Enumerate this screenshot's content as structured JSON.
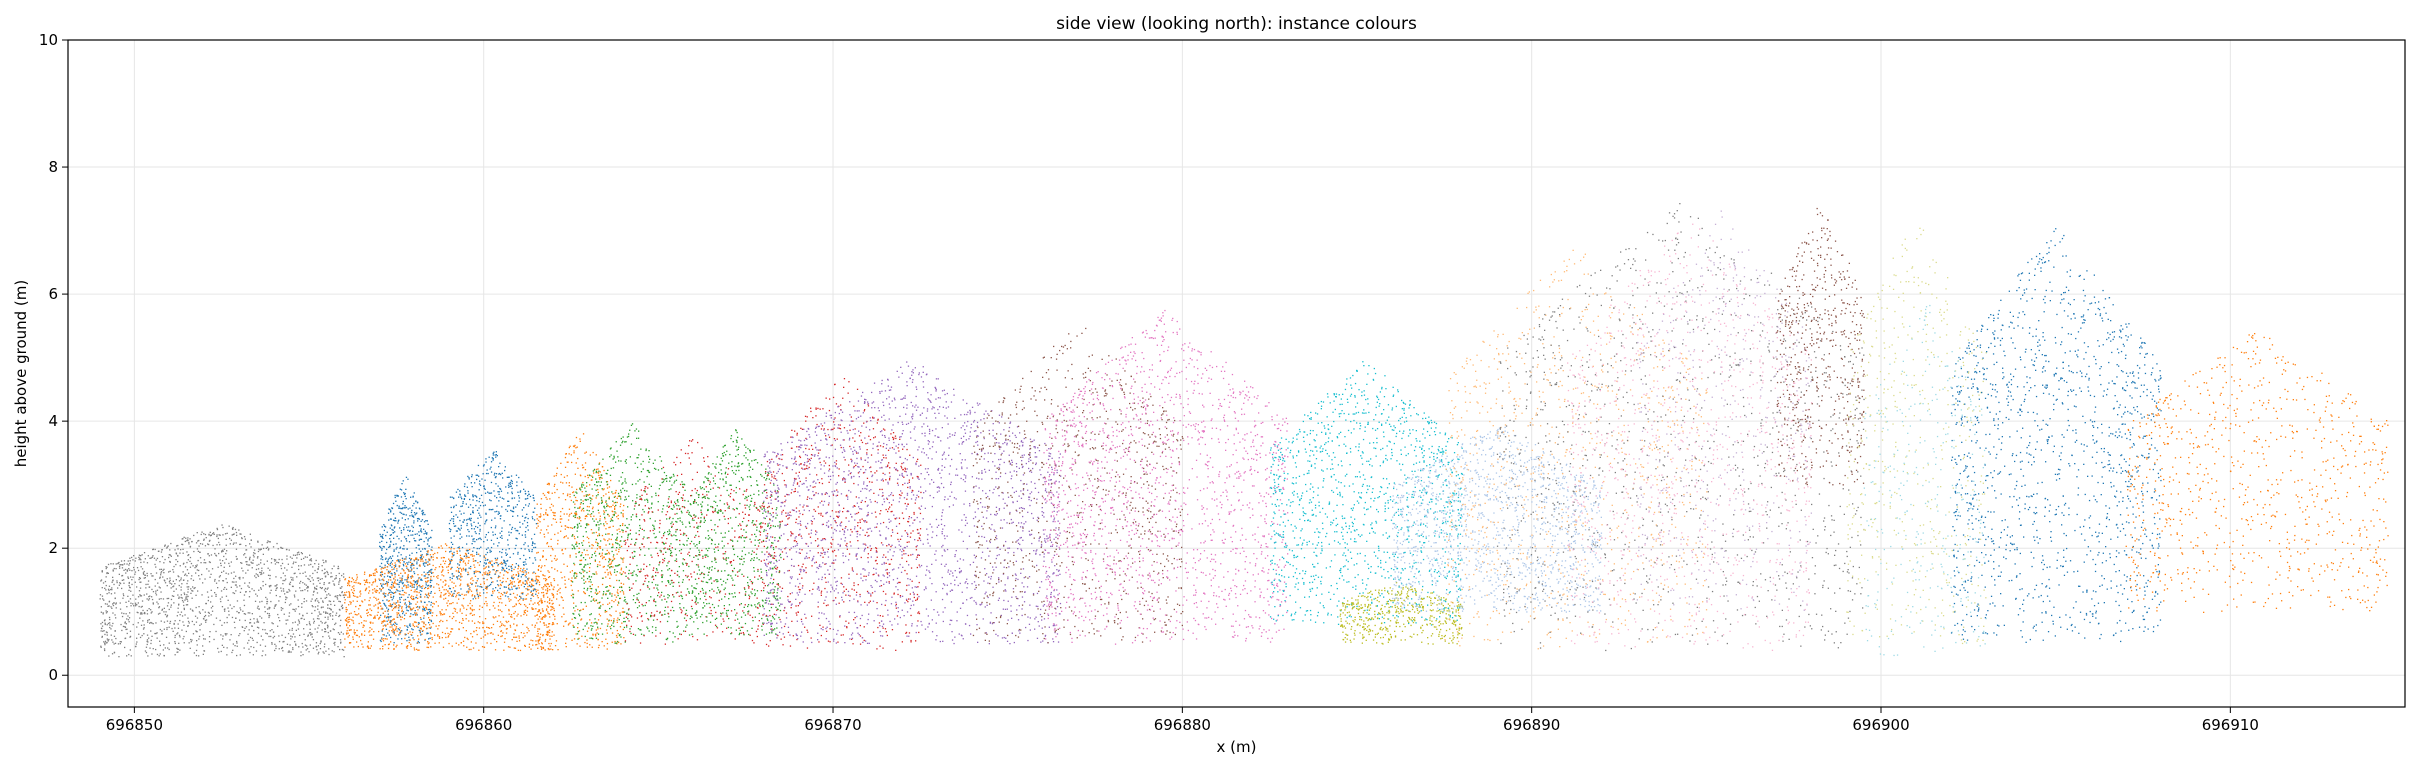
{
  "chart_data": {
    "type": "scatter",
    "title": "side view (looking north): instance colours",
    "xlabel": "x (m)",
    "ylabel": "height above ground (m)",
    "xlim": [
      696848.1,
      696915.0
    ],
    "ylim": [
      -0.5,
      10
    ],
    "xticks": [
      696850,
      696860,
      696870,
      696880,
      696890,
      696900,
      696910
    ],
    "xtick_labels": [
      "696850",
      "696860",
      "696870",
      "696880",
      "696890",
      "696900",
      "696910"
    ],
    "yticks": [
      0,
      2,
      4,
      6,
      8,
      10
    ],
    "ytick_labels": [
      "0",
      "2",
      "4",
      "6",
      "8",
      "10"
    ],
    "grid": true,
    "legend": "none",
    "point_size": "tiny",
    "instances": [
      {
        "color": "#7f7f7f",
        "x_range": [
          696849.0,
          696856.0
        ],
        "z_range": [
          0.3,
          2.4
        ],
        "density": 1.0
      },
      {
        "color": "#1f77b4",
        "x_range": [
          696857.0,
          696858.5
        ],
        "z_range": [
          0.5,
          3.2
        ],
        "density": 0.9
      },
      {
        "color": "#ff7f0e",
        "x_range": [
          696856.0,
          696862.0
        ],
        "z_range": [
          0.4,
          2.1
        ],
        "density": 1.0
      },
      {
        "color": "#1f77b4",
        "x_range": [
          696859.0,
          696861.5
        ],
        "z_range": [
          1.2,
          3.6
        ],
        "density": 0.9
      },
      {
        "color": "#ff7f0e",
        "x_range": [
          696861.5,
          696864.0
        ],
        "z_range": [
          0.4,
          3.9
        ],
        "density": 1.0
      },
      {
        "color": "#2ca02c",
        "x_range": [
          696862.5,
          696866.0
        ],
        "z_range": [
          0.5,
          4.0
        ],
        "density": 1.0
      },
      {
        "color": "#d62728",
        "x_range": [
          696864.0,
          696868.0
        ],
        "z_range": [
          0.5,
          3.8
        ],
        "density": 0.5
      },
      {
        "color": "#2ca02c",
        "x_range": [
          696866.0,
          696868.5
        ],
        "z_range": [
          0.6,
          4.0
        ],
        "density": 0.9
      },
      {
        "color": "#d62728",
        "x_range": [
          696868.0,
          696872.5
        ],
        "z_range": [
          0.4,
          4.8
        ],
        "density": 0.7
      },
      {
        "color": "#9467bd",
        "x_range": [
          696868.0,
          696876.5
        ],
        "z_range": [
          0.5,
          5.0
        ],
        "density": 1.0
      },
      {
        "color": "#8c564b",
        "x_range": [
          696874.0,
          696880.0
        ],
        "z_range": [
          0.5,
          5.6
        ],
        "density": 0.6
      },
      {
        "color": "#e377c2",
        "x_range": [
          696876.0,
          696883.0
        ],
        "z_range": [
          0.5,
          5.8
        ],
        "density": 1.0
      },
      {
        "color": "#17becf",
        "x_range": [
          696882.5,
          696888.0
        ],
        "z_range": [
          0.8,
          5.0
        ],
        "density": 1.0
      },
      {
        "color": "#bcbd22",
        "x_range": [
          696884.5,
          696888.0
        ],
        "z_range": [
          0.5,
          1.5
        ],
        "density": 0.6
      },
      {
        "color": "#aec7e8",
        "x_range": [
          696886.0,
          696892.0
        ],
        "z_range": [
          1.0,
          4.0
        ],
        "density": 1.0
      },
      {
        "color": "#ffbb78",
        "x_range": [
          696887.5,
          696895.0
        ],
        "z_range": [
          0.4,
          6.8
        ],
        "density": 0.5
      },
      {
        "color": "#7f7f7f",
        "x_range": [
          696889.0,
          696899.5
        ],
        "z_range": [
          0.4,
          7.5
        ],
        "density": 0.45
      },
      {
        "color": "#f7b6d2",
        "x_range": [
          696891.0,
          696898.0
        ],
        "z_range": [
          0.4,
          7.3
        ],
        "density": 0.6
      },
      {
        "color": "#c5b0d5",
        "x_range": [
          696893.0,
          696898.0
        ],
        "z_range": [
          1.0,
          7.4
        ],
        "density": 0.4
      },
      {
        "color": "#8c564b",
        "x_range": [
          696897.0,
          696899.5
        ],
        "z_range": [
          3.0,
          7.5
        ],
        "density": 0.8
      },
      {
        "color": "#dbdb8d",
        "x_range": [
          696899.0,
          696903.0
        ],
        "z_range": [
          0.5,
          7.4
        ],
        "density": 0.5
      },
      {
        "color": "#9edae5",
        "x_range": [
          696899.5,
          696903.0
        ],
        "z_range": [
          0.3,
          6.0
        ],
        "density": 0.4
      },
      {
        "color": "#1f77b4",
        "x_range": [
          696902.0,
          696908.0
        ],
        "z_range": [
          0.5,
          7.1
        ],
        "density": 1.0
      },
      {
        "color": "#ff7f0e",
        "x_range": [
          696907.0,
          696914.5
        ],
        "z_range": [
          1.0,
          5.5
        ],
        "density": 0.5
      }
    ]
  }
}
